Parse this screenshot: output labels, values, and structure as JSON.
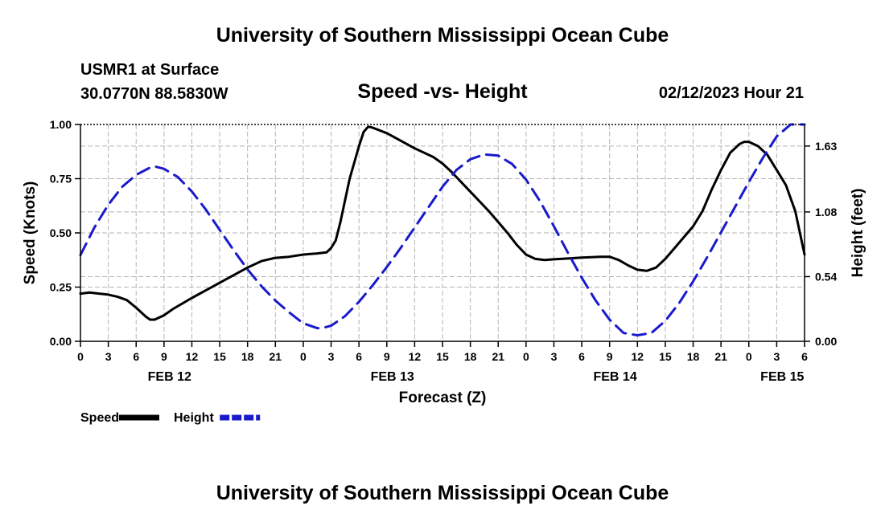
{
  "header": {
    "title": "University of Southern Mississippi Ocean Cube",
    "footer_title": "University of Southern Mississippi Ocean Cube",
    "station": "USMR1 at Surface",
    "coordinates": "30.0770N  88.5830W",
    "datetime": "02/12/2023 Hour 21"
  },
  "chart_data": {
    "type": "line",
    "title": "Speed -vs- Height",
    "xlabel": "Forecast (Z)",
    "ylabel": "Speed (Knots)",
    "y2label": "Height (feet)",
    "ylim": [
      0,
      1
    ],
    "y2lim": [
      0,
      1.81
    ],
    "xlim": [
      0,
      78
    ],
    "yticks": [
      "0.00",
      "0.25",
      "0.50",
      "0.75",
      "1.00"
    ],
    "y2ticks": [
      "0.00",
      "0.54",
      "1.08",
      "1.63"
    ],
    "y2tick_values": [
      0.0,
      0.54,
      1.08,
      1.63
    ],
    "xtick_labels": [
      "0",
      "3",
      "6",
      "9",
      "12",
      "15",
      "18",
      "21",
      "0",
      "3",
      "6",
      "9",
      "12",
      "15",
      "18",
      "21",
      "0",
      "3",
      "6",
      "9",
      "12",
      "15",
      "18",
      "21",
      "0",
      "3",
      "6"
    ],
    "date_labels": [
      {
        "label": "FEB 12",
        "hour": 9.6
      },
      {
        "label": "FEB 13",
        "hour": 33.6
      },
      {
        "label": "FEB 14",
        "hour": 57.6
      },
      {
        "label": "FEB 15",
        "hour": 75.6
      }
    ],
    "series": [
      {
        "name": "Speed",
        "color": "#000000",
        "axis": "left",
        "dash": "solid",
        "points": [
          [
            0,
            0.22
          ],
          [
            1,
            0.225
          ],
          [
            2,
            0.22
          ],
          [
            3,
            0.215
          ],
          [
            4,
            0.205
          ],
          [
            5,
            0.19
          ],
          [
            6,
            0.155
          ],
          [
            7,
            0.115
          ],
          [
            7.5,
            0.1
          ],
          [
            8,
            0.1
          ],
          [
            9,
            0.12
          ],
          [
            10,
            0.15
          ],
          [
            12,
            0.2
          ],
          [
            15,
            0.27
          ],
          [
            18,
            0.34
          ],
          [
            19.5,
            0.37
          ],
          [
            21,
            0.385
          ],
          [
            22.5,
            0.39
          ],
          [
            24,
            0.4
          ],
          [
            25.5,
            0.405
          ],
          [
            26.5,
            0.41
          ],
          [
            27,
            0.43
          ],
          [
            27.5,
            0.465
          ],
          [
            28,
            0.55
          ],
          [
            29,
            0.75
          ],
          [
            30,
            0.9
          ],
          [
            30.5,
            0.965
          ],
          [
            31,
            0.99
          ],
          [
            31.5,
            0.985
          ],
          [
            33,
            0.96
          ],
          [
            36,
            0.89
          ],
          [
            38,
            0.85
          ],
          [
            39,
            0.82
          ],
          [
            40,
            0.78
          ],
          [
            42,
            0.69
          ],
          [
            44,
            0.6
          ],
          [
            46,
            0.5
          ],
          [
            47,
            0.445
          ],
          [
            48,
            0.4
          ],
          [
            49,
            0.38
          ],
          [
            50,
            0.375
          ],
          [
            51,
            0.378
          ],
          [
            52.5,
            0.382
          ],
          [
            54,
            0.386
          ],
          [
            56,
            0.39
          ],
          [
            57,
            0.39
          ],
          [
            58,
            0.375
          ],
          [
            59,
            0.35
          ],
          [
            60,
            0.33
          ],
          [
            61,
            0.325
          ],
          [
            62,
            0.34
          ],
          [
            63,
            0.38
          ],
          [
            64,
            0.43
          ],
          [
            66,
            0.53
          ],
          [
            67,
            0.6
          ],
          [
            68,
            0.7
          ],
          [
            69,
            0.79
          ],
          [
            70,
            0.87
          ],
          [
            71,
            0.91
          ],
          [
            71.5,
            0.92
          ],
          [
            72,
            0.92
          ],
          [
            73,
            0.9
          ],
          [
            74,
            0.86
          ],
          [
            75,
            0.79
          ],
          [
            76,
            0.72
          ],
          [
            77,
            0.6
          ],
          [
            78,
            0.4
          ]
        ]
      },
      {
        "name": "Height",
        "color": "#1a1acc",
        "axis": "right",
        "dash": "dashed",
        "points": [
          [
            0,
            0.72
          ],
          [
            1.5,
            0.95
          ],
          [
            3,
            1.14
          ],
          [
            4.5,
            1.29
          ],
          [
            6,
            1.39
          ],
          [
            7.5,
            1.45
          ],
          [
            8,
            1.46
          ],
          [
            9,
            1.44
          ],
          [
            10.5,
            1.37
          ],
          [
            12,
            1.25
          ],
          [
            13.5,
            1.1
          ],
          [
            15,
            0.93
          ],
          [
            16.5,
            0.76
          ],
          [
            18,
            0.6
          ],
          [
            19.5,
            0.46
          ],
          [
            21,
            0.34
          ],
          [
            22.5,
            0.24
          ],
          [
            24,
            0.15
          ],
          [
            25.5,
            0.11
          ],
          [
            26,
            0.11
          ],
          [
            27,
            0.13
          ],
          [
            28.5,
            0.21
          ],
          [
            30,
            0.33
          ],
          [
            31.5,
            0.47
          ],
          [
            33,
            0.62
          ],
          [
            34.5,
            0.78
          ],
          [
            36,
            0.95
          ],
          [
            37.5,
            1.12
          ],
          [
            39,
            1.29
          ],
          [
            40.5,
            1.43
          ],
          [
            42,
            1.52
          ],
          [
            43.5,
            1.56
          ],
          [
            45,
            1.55
          ],
          [
            46.5,
            1.48
          ],
          [
            48,
            1.35
          ],
          [
            49.5,
            1.17
          ],
          [
            51,
            0.96
          ],
          [
            52.5,
            0.74
          ],
          [
            54,
            0.53
          ],
          [
            55.5,
            0.34
          ],
          [
            57,
            0.18
          ],
          [
            58.5,
            0.07
          ],
          [
            60,
            0.05
          ],
          [
            61.5,
            0.07
          ],
          [
            63,
            0.17
          ],
          [
            64.5,
            0.32
          ],
          [
            66,
            0.5
          ],
          [
            67.5,
            0.7
          ],
          [
            69,
            0.91
          ],
          [
            70.5,
            1.12
          ],
          [
            72,
            1.33
          ],
          [
            73.5,
            1.53
          ],
          [
            75,
            1.71
          ],
          [
            76.5,
            1.82
          ],
          [
            78,
            1.86
          ]
        ]
      }
    ],
    "legend": [
      {
        "label": "Speed",
        "color": "#000000"
      },
      {
        "label": "Height",
        "color": "#1a1acc"
      }
    ]
  }
}
